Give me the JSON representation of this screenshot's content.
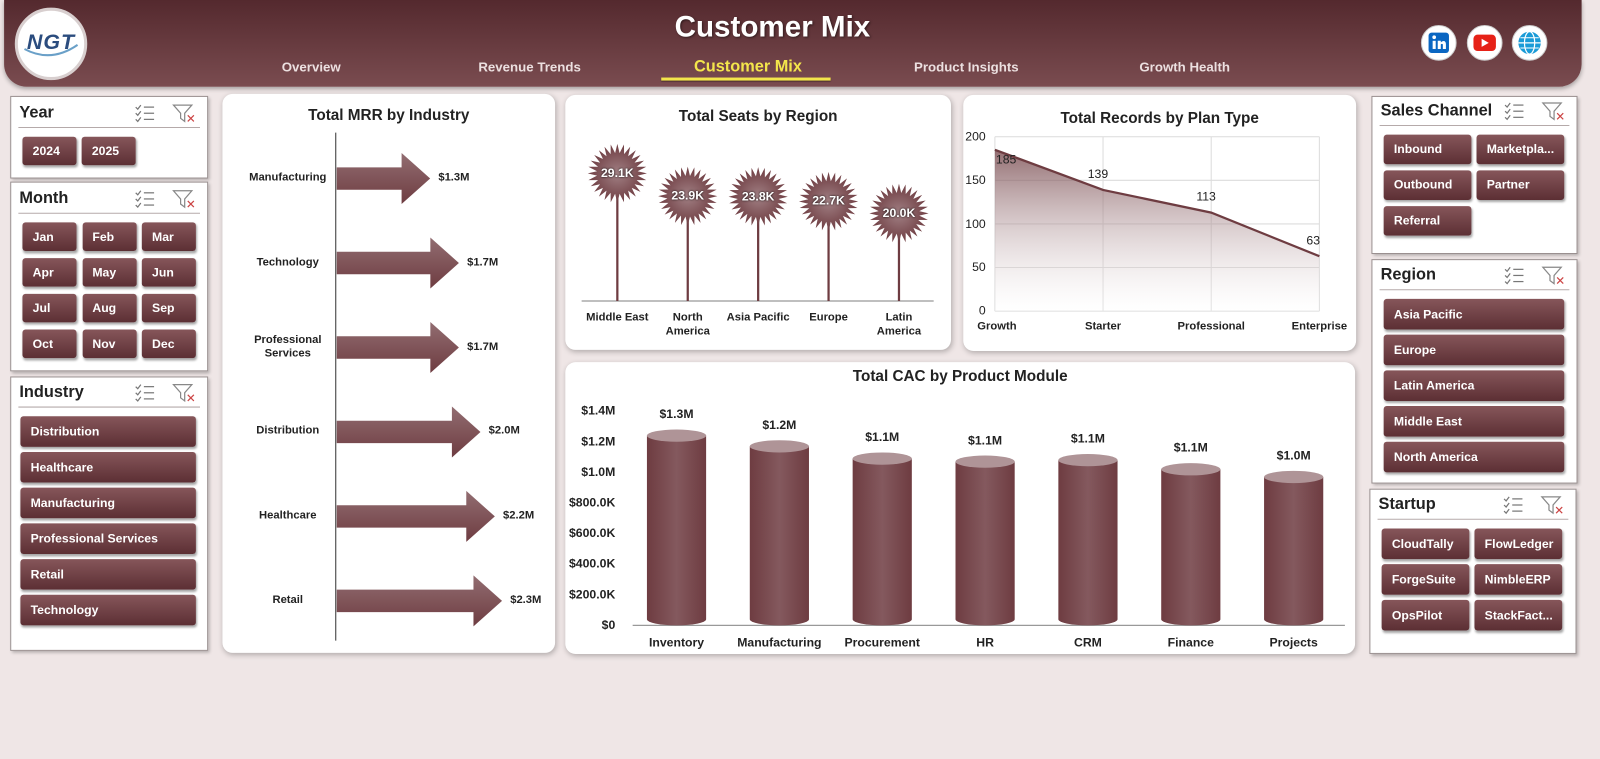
{
  "header": {
    "logo": "NGT",
    "title": "Customer Mix",
    "nav": [
      "Overview",
      "Revenue Trends",
      "Customer Mix",
      "Product Insights",
      "Growth Health"
    ],
    "nav_active": 2
  },
  "slicers": [
    {
      "title": "Year",
      "items": [
        "2024",
        "2025"
      ]
    },
    {
      "title": "Month",
      "items": [
        "Jan",
        "Feb",
        "Mar",
        "Apr",
        "May",
        "Jun",
        "Jul",
        "Aug",
        "Sep",
        "Oct",
        "Nov",
        "Dec"
      ]
    },
    {
      "title": "Industry",
      "items": [
        "Distribution",
        "Healthcare",
        "Manufacturing",
        "Professional Services",
        "Retail",
        "Technology"
      ]
    },
    {
      "title": "Sales Channel",
      "items": [
        "Inbound",
        "Marketpla...",
        "Outbound",
        "Partner",
        "Referral"
      ]
    },
    {
      "title": "Region",
      "items": [
        "Asia Pacific",
        "Europe",
        "Latin America",
        "Middle East",
        "North America"
      ]
    },
    {
      "title": "Startup",
      "items": [
        "CloudTally",
        "FlowLedger",
        "ForgeSuite",
        "NimbleERP",
        "OpsPilot",
        "StackFact..."
      ]
    }
  ],
  "chart_data": [
    {
      "type": "arrow-bar",
      "title": "Total MRR by Industry",
      "categories": [
        "Manufacturing",
        "Technology",
        "Professional Services",
        "Distribution",
        "Healthcare",
        "Retail"
      ],
      "values": [
        1300000,
        1700000,
        1700000,
        2000000,
        2200000,
        2300000
      ],
      "value_labels": [
        "$1.3M",
        "$1.7M",
        "$1.7M",
        "$2.0M",
        "$2.2M",
        "$2.3M"
      ],
      "color": "#6e3c41"
    },
    {
      "type": "lollipop",
      "title": "Total Seats by Region",
      "categories": [
        "Middle East",
        "North America",
        "Asia Pacific",
        "Europe",
        "Latin America"
      ],
      "values": [
        29100,
        23900,
        23800,
        22700,
        20000
      ],
      "value_labels": [
        "29.1K",
        "23.9K",
        "23.8K",
        "22.7K",
        "20.0K"
      ],
      "color": "#6e3c41"
    },
    {
      "type": "area",
      "title": "Total Records by Plan Type",
      "categories": [
        "Growth",
        "Starter",
        "Professional",
        "Enterprise"
      ],
      "values": [
        185,
        139,
        113,
        63
      ],
      "ylim": [
        0,
        200
      ],
      "yticks": [
        0,
        50,
        100,
        150,
        200
      ],
      "grid": true,
      "color": "#6e3c41"
    },
    {
      "type": "cylinder-bar",
      "title": "Total CAC by Product Module",
      "categories": [
        "Inventory",
        "Manufacturing",
        "Procurement",
        "HR",
        "CRM",
        "Finance",
        "Projects"
      ],
      "values": [
        1280000,
        1210000,
        1130000,
        1110000,
        1120000,
        1060000,
        1010000
      ],
      "value_labels": [
        "$1.3M",
        "$1.2M",
        "$1.1M",
        "$1.1M",
        "$1.1M",
        "$1.1M",
        "$1.0M"
      ],
      "ylim": [
        0,
        1400000
      ],
      "yticks": [
        {
          "value": 0,
          "label": "$0"
        },
        {
          "value": 200000,
          "label": "$200.0K"
        },
        {
          "value": 400000,
          "label": "$400.0K"
        },
        {
          "value": 600000,
          "label": "$600.0K"
        },
        {
          "value": 800000,
          "label": "$800.0K"
        },
        {
          "value": 1000000,
          "label": "$1.0M"
        },
        {
          "value": 1200000,
          "label": "$1.2M"
        },
        {
          "value": 1400000,
          "label": "$1.4M"
        }
      ],
      "color": "#6e3c41"
    }
  ]
}
